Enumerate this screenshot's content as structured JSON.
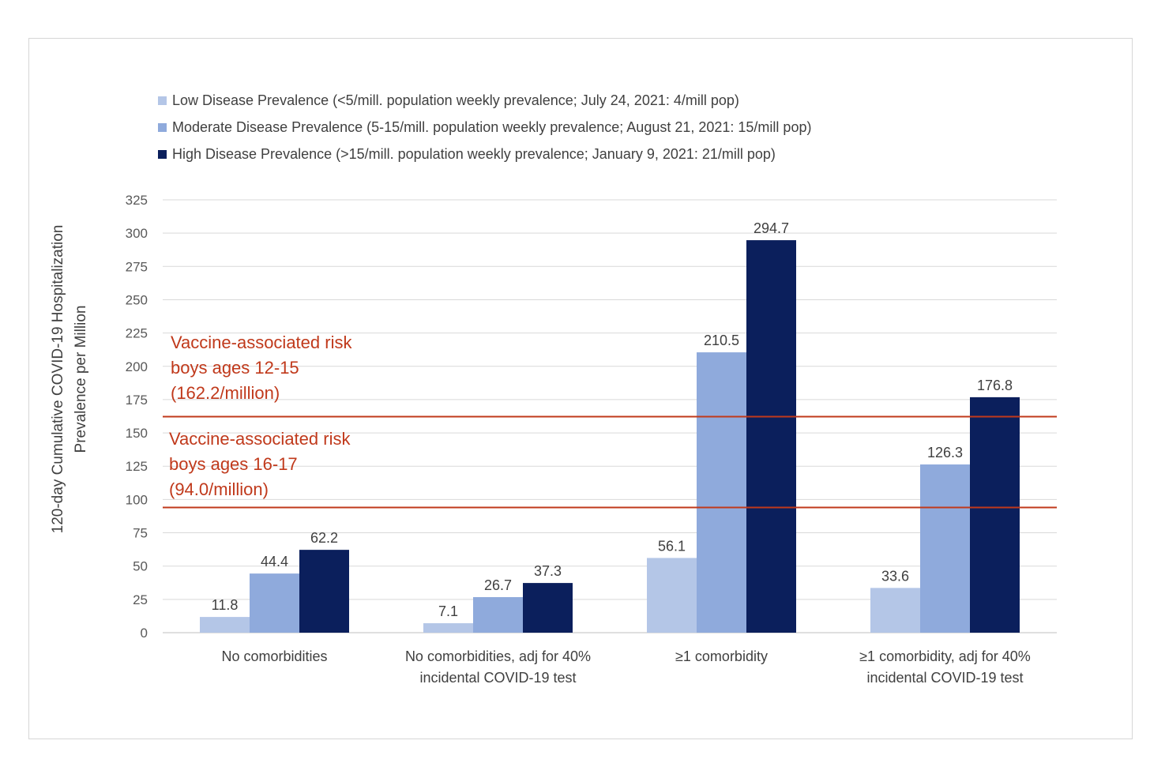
{
  "chart_data": {
    "type": "bar",
    "title": "",
    "xlabel": "",
    "ylabel": [
      "120-day Cumulative COVID-19 Hospitalization",
      "Prevalence per Million"
    ],
    "ylim": [
      0,
      325
    ],
    "ytick_step": 25,
    "grid": true,
    "legend_position": "top-left",
    "categories": [
      [
        "No comorbidities"
      ],
      [
        "No comorbidities, adj for 40%",
        "incidental COVID-19 test"
      ],
      [
        "≥1 comorbidity"
      ],
      [
        "≥1 comorbidity, adj for 40%",
        "incidental COVID-19 test"
      ]
    ],
    "series": [
      {
        "name": "Low Disease Prevalence (<5/mill. population weekly prevalence; July 24, 2021: 4/mill pop)",
        "color": "#b4c6e7",
        "values": [
          11.8,
          7.1,
          56.1,
          33.6
        ]
      },
      {
        "name": "Moderate Disease Prevalence (5-15/mill. population weekly prevalence; August 21, 2021: 15/mill pop)",
        "color": "#8faadc",
        "values": [
          44.4,
          26.7,
          210.5,
          126.3
        ]
      },
      {
        "name": "High Disease Prevalence (>15/mill. population weekly prevalence; January 9, 2021: 21/mill pop)",
        "color": "#0b1f5c",
        "values": [
          62.2,
          37.3,
          294.7,
          176.8
        ]
      }
    ],
    "reference_lines": [
      {
        "value": 162.2,
        "color": "#c0391b",
        "label": [
          "Vaccine-associated risk",
          "boys ages 12-15",
          "(162.2/million)"
        ]
      },
      {
        "value": 94.0,
        "color": "#c0391b",
        "label": [
          "Vaccine-associated risk",
          "boys ages 16-17",
          "(94.0/million)"
        ]
      }
    ]
  }
}
